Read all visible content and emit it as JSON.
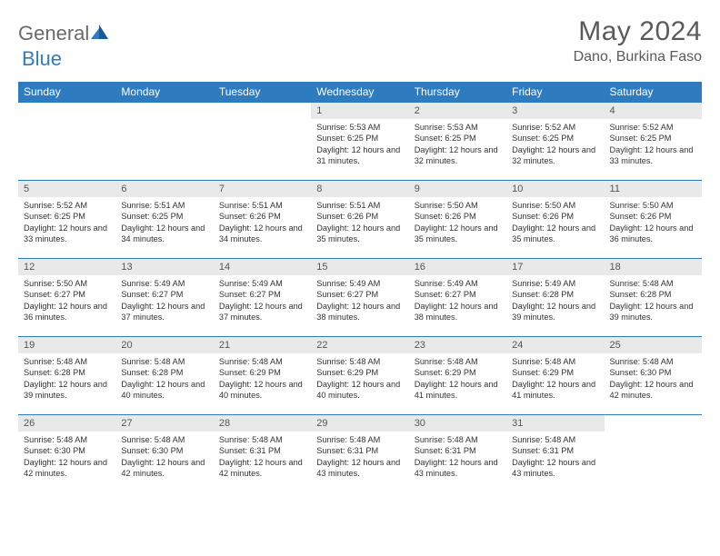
{
  "logo": {
    "part1": "General",
    "part2": "Blue"
  },
  "title": "May 2024",
  "location": "Dano, Burkina Faso",
  "colors": {
    "accent": "#2f7bbf",
    "daynum_bg": "#e9e9e9",
    "text": "#333333",
    "header_text": "#5a5a5a"
  },
  "dayHeaders": [
    "Sunday",
    "Monday",
    "Tuesday",
    "Wednesday",
    "Thursday",
    "Friday",
    "Saturday"
  ],
  "weeks": [
    [
      {
        "empty": true
      },
      {
        "empty": true
      },
      {
        "empty": true
      },
      {
        "n": "1",
        "sunrise": "5:53 AM",
        "sunset": "6:25 PM",
        "daylight": "12 hours and 31 minutes."
      },
      {
        "n": "2",
        "sunrise": "5:53 AM",
        "sunset": "6:25 PM",
        "daylight": "12 hours and 32 minutes."
      },
      {
        "n": "3",
        "sunrise": "5:52 AM",
        "sunset": "6:25 PM",
        "daylight": "12 hours and 32 minutes."
      },
      {
        "n": "4",
        "sunrise": "5:52 AM",
        "sunset": "6:25 PM",
        "daylight": "12 hours and 33 minutes."
      }
    ],
    [
      {
        "n": "5",
        "sunrise": "5:52 AM",
        "sunset": "6:25 PM",
        "daylight": "12 hours and 33 minutes."
      },
      {
        "n": "6",
        "sunrise": "5:51 AM",
        "sunset": "6:25 PM",
        "daylight": "12 hours and 34 minutes."
      },
      {
        "n": "7",
        "sunrise": "5:51 AM",
        "sunset": "6:26 PM",
        "daylight": "12 hours and 34 minutes."
      },
      {
        "n": "8",
        "sunrise": "5:51 AM",
        "sunset": "6:26 PM",
        "daylight": "12 hours and 35 minutes."
      },
      {
        "n": "9",
        "sunrise": "5:50 AM",
        "sunset": "6:26 PM",
        "daylight": "12 hours and 35 minutes."
      },
      {
        "n": "10",
        "sunrise": "5:50 AM",
        "sunset": "6:26 PM",
        "daylight": "12 hours and 35 minutes."
      },
      {
        "n": "11",
        "sunrise": "5:50 AM",
        "sunset": "6:26 PM",
        "daylight": "12 hours and 36 minutes."
      }
    ],
    [
      {
        "n": "12",
        "sunrise": "5:50 AM",
        "sunset": "6:27 PM",
        "daylight": "12 hours and 36 minutes."
      },
      {
        "n": "13",
        "sunrise": "5:49 AM",
        "sunset": "6:27 PM",
        "daylight": "12 hours and 37 minutes."
      },
      {
        "n": "14",
        "sunrise": "5:49 AM",
        "sunset": "6:27 PM",
        "daylight": "12 hours and 37 minutes."
      },
      {
        "n": "15",
        "sunrise": "5:49 AM",
        "sunset": "6:27 PM",
        "daylight": "12 hours and 38 minutes."
      },
      {
        "n": "16",
        "sunrise": "5:49 AM",
        "sunset": "6:27 PM",
        "daylight": "12 hours and 38 minutes."
      },
      {
        "n": "17",
        "sunrise": "5:49 AM",
        "sunset": "6:28 PM",
        "daylight": "12 hours and 39 minutes."
      },
      {
        "n": "18",
        "sunrise": "5:48 AM",
        "sunset": "6:28 PM",
        "daylight": "12 hours and 39 minutes."
      }
    ],
    [
      {
        "n": "19",
        "sunrise": "5:48 AM",
        "sunset": "6:28 PM",
        "daylight": "12 hours and 39 minutes."
      },
      {
        "n": "20",
        "sunrise": "5:48 AM",
        "sunset": "6:28 PM",
        "daylight": "12 hours and 40 minutes."
      },
      {
        "n": "21",
        "sunrise": "5:48 AM",
        "sunset": "6:29 PM",
        "daylight": "12 hours and 40 minutes."
      },
      {
        "n": "22",
        "sunrise": "5:48 AM",
        "sunset": "6:29 PM",
        "daylight": "12 hours and 40 minutes."
      },
      {
        "n": "23",
        "sunrise": "5:48 AM",
        "sunset": "6:29 PM",
        "daylight": "12 hours and 41 minutes."
      },
      {
        "n": "24",
        "sunrise": "5:48 AM",
        "sunset": "6:29 PM",
        "daylight": "12 hours and 41 minutes."
      },
      {
        "n": "25",
        "sunrise": "5:48 AM",
        "sunset": "6:30 PM",
        "daylight": "12 hours and 42 minutes."
      }
    ],
    [
      {
        "n": "26",
        "sunrise": "5:48 AM",
        "sunset": "6:30 PM",
        "daylight": "12 hours and 42 minutes."
      },
      {
        "n": "27",
        "sunrise": "5:48 AM",
        "sunset": "6:30 PM",
        "daylight": "12 hours and 42 minutes."
      },
      {
        "n": "28",
        "sunrise": "5:48 AM",
        "sunset": "6:31 PM",
        "daylight": "12 hours and 42 minutes."
      },
      {
        "n": "29",
        "sunrise": "5:48 AM",
        "sunset": "6:31 PM",
        "daylight": "12 hours and 43 minutes."
      },
      {
        "n": "30",
        "sunrise": "5:48 AM",
        "sunset": "6:31 PM",
        "daylight": "12 hours and 43 minutes."
      },
      {
        "n": "31",
        "sunrise": "5:48 AM",
        "sunset": "6:31 PM",
        "daylight": "12 hours and 43 minutes."
      },
      {
        "empty": true
      }
    ]
  ],
  "labels": {
    "sunrise": "Sunrise:",
    "sunset": "Sunset:",
    "daylight": "Daylight:"
  }
}
